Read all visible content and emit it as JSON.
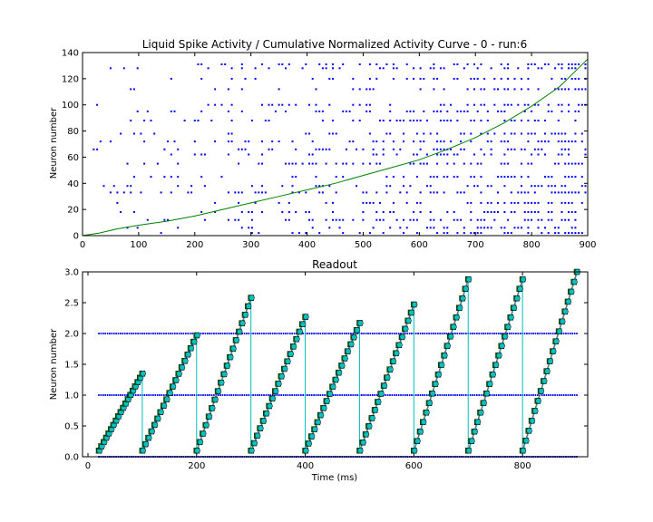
{
  "chart_data": [
    {
      "type": "scatter",
      "title": "Liquid Spike Activity / Cumulative Normalized Activity Curve - 0 - run:6",
      "xlabel": "",
      "ylabel": "Neuron number",
      "xlim": [
        0,
        900
      ],
      "ylim": [
        0,
        140
      ],
      "xticks": [
        "0",
        "100",
        "200",
        "300",
        "400",
        "500",
        "600",
        "700",
        "800",
        "900"
      ],
      "yticks": [
        "0",
        "20",
        "40",
        "60",
        "80",
        "100",
        "120",
        "140"
      ],
      "grid": false,
      "colors": {
        "spikes": "#0000ff",
        "curve": "#008000"
      },
      "spike_rows": [
        2,
        6,
        12,
        18,
        25,
        33,
        38,
        45,
        55,
        62,
        66,
        72,
        78,
        88,
        95,
        100,
        112,
        120,
        128,
        131
      ],
      "cumulative_curve": {
        "x": [
          0,
          30,
          60,
          100,
          150,
          200,
          250,
          300,
          350,
          400,
          450,
          500,
          550,
          600,
          650,
          700,
          750,
          800,
          850,
          900
        ],
        "y": [
          0,
          2,
          5,
          8,
          11,
          15,
          20,
          25,
          30,
          35,
          40,
          46,
          52,
          58,
          66,
          75,
          86,
          99,
          114,
          135
        ]
      }
    },
    {
      "type": "line",
      "title": "Readout",
      "xlabel": "Time (ms)",
      "ylabel": "Neuron number",
      "xlim": [
        -10,
        920
      ],
      "ylim": [
        0,
        3.0
      ],
      "xticks": [
        "0",
        "200",
        "400",
        "600",
        "800"
      ],
      "yticks": [
        "0.0",
        "0.5",
        "1.0",
        "1.5",
        "2.0",
        "2.5",
        "3.0"
      ],
      "grid": false,
      "colors": {
        "spike_rows": "#0000ff",
        "readout_a": "#ff0000",
        "readout_b": "#008000",
        "readout_c": "#00bfbf"
      },
      "spike_row_levels": [
        0,
        1,
        2
      ],
      "segments": [
        {
          "x_start": 20,
          "x_end": 100,
          "y_start": 0.1,
          "y_end": 1.35
        },
        {
          "x_start": 100,
          "x_end": 200,
          "y_start": 0.1,
          "y_end": 1.97
        },
        {
          "x_start": 200,
          "x_end": 300,
          "y_start": 0.1,
          "y_end": 2.58
        },
        {
          "x_start": 300,
          "x_end": 400,
          "y_start": 0.1,
          "y_end": 2.27
        },
        {
          "x_start": 400,
          "x_end": 500,
          "y_start": 0.1,
          "y_end": 2.17
        },
        {
          "x_start": 500,
          "x_end": 600,
          "y_start": 0.1,
          "y_end": 2.47
        },
        {
          "x_start": 600,
          "x_end": 700,
          "y_start": 0.1,
          "y_end": 2.88
        },
        {
          "x_start": 700,
          "x_end": 800,
          "y_start": 0.1,
          "y_end": 2.88
        },
        {
          "x_start": 800,
          "x_end": 900,
          "y_start": 0.1,
          "y_end": 3.0
        }
      ]
    }
  ]
}
